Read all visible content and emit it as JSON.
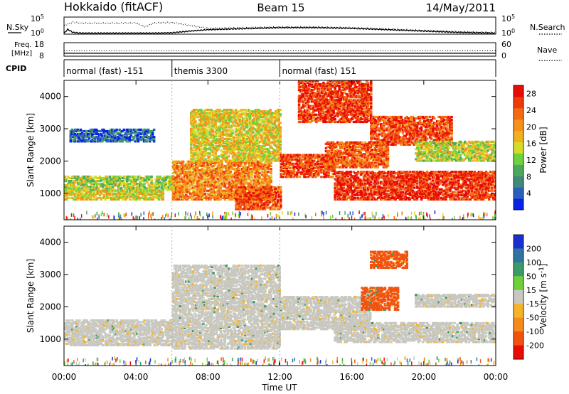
{
  "header": {
    "radar": "Hokkaido (fitACF)",
    "beam": "Beam 15",
    "date": "14/May/2011"
  },
  "side_labels": {
    "nsky": "N.Sky",
    "freq_line1": "Freq.",
    "freq_line2": "[MHz]",
    "cpid": "CPID",
    "nsearch": "N.Search",
    "nave": "Nave"
  },
  "chart_data": [
    {
      "type": "line",
      "panel": "noise",
      "series": [
        {
          "name": "N.Sky",
          "style": "solid",
          "x": [
            0,
            0.2,
            0.5,
            1,
            2,
            3,
            4,
            5,
            6,
            7,
            8,
            10,
            12,
            14,
            16,
            18,
            20,
            22,
            24
          ],
          "y_log10": [
            0.2,
            1.4,
            0.5,
            0.3,
            0.3,
            0.3,
            0.3,
            0.3,
            0.4,
            0.9,
            1.3,
            1.6,
            1.9,
            1.9,
            1.7,
            1.3,
            0.9,
            0.5,
            0.3
          ]
        },
        {
          "name": "N.Search",
          "style": "dotted",
          "x": [
            0,
            0.5,
            1,
            2,
            3,
            4,
            4.5,
            5,
            6,
            8,
            10,
            12,
            14,
            16,
            18,
            20,
            22,
            24
          ],
          "y_log10": [
            2.5,
            3.5,
            3.2,
            3.2,
            3.2,
            3.3,
            2.1,
            3.3,
            3.4,
            1.7,
            1.9,
            2.1,
            2.1,
            1.9,
            1.5,
            1.1,
            0.7,
            0.5
          ]
        }
      ],
      "left_ticks": [
        "10^5",
        "10^0"
      ],
      "right_ticks": [
        "10^5",
        "10^0"
      ],
      "ylim_log10": [
        0,
        5
      ]
    },
    {
      "type": "line",
      "panel": "frequency",
      "series": [
        {
          "name": "Freq.",
          "style": "solid",
          "x": [
            0,
            24
          ],
          "y": [
            10.2,
            10.2
          ]
        },
        {
          "name": "Nave",
          "style": "dotted",
          "x": [
            0,
            24
          ],
          "y": [
            12,
            12
          ]
        }
      ],
      "left_ticks": [
        "18",
        "8"
      ],
      "right_ticks": [
        "60",
        "0"
      ],
      "ylim": [
        8,
        18
      ]
    },
    {
      "type": "timeline",
      "panel": "cpid",
      "segments": [
        {
          "label": "normal (fast) -151",
          "start": 0,
          "end": 6
        },
        {
          "label": "themis 3300",
          "start": 6,
          "end": 12
        },
        {
          "label": "normal (fast) 151",
          "start": 12,
          "end": 24
        }
      ]
    },
    {
      "type": "heatmap",
      "panel": "power",
      "ylabel": "Slant Range [km]",
      "ylim": [
        180,
        4500
      ],
      "yticks": [
        1000,
        2000,
        3000,
        4000
      ],
      "colorbar": {
        "label": "Power [dB]",
        "ticks": [
          4,
          8,
          12,
          16,
          20,
          24,
          28
        ],
        "range": [
          0,
          30
        ],
        "colors": [
          "#0a22e8",
          "#2a5fbe",
          "#3f8a7a",
          "#4da85e",
          "#6fd040",
          "#d4dc28",
          "#f0b020",
          "#f59018",
          "#f46a12",
          "#ef3a0a",
          "#e80a04"
        ]
      },
      "bands": [
        {
          "start": 0.0,
          "end": 6.0,
          "lo": 1100,
          "hi": 1550,
          "level": 0.45
        },
        {
          "start": 0.0,
          "end": 5.5,
          "lo": 800,
          "hi": 1100,
          "level": 0.55
        },
        {
          "start": 0.3,
          "end": 5.0,
          "lo": 2600,
          "hi": 3000,
          "level": 0.15
        },
        {
          "start": 6.0,
          "end": 11.5,
          "lo": 800,
          "hi": 2000,
          "level": 0.7
        },
        {
          "start": 7.0,
          "end": 12.0,
          "lo": 2000,
          "hi": 3600,
          "level": 0.55
        },
        {
          "start": 9.5,
          "end": 12.0,
          "lo": 500,
          "hi": 1200,
          "level": 0.82
        },
        {
          "start": 12.0,
          "end": 15.0,
          "lo": 1500,
          "hi": 2200,
          "level": 0.85
        },
        {
          "start": 13.0,
          "end": 17.0,
          "lo": 3200,
          "hi": 4500,
          "level": 0.88
        },
        {
          "start": 15.0,
          "end": 24.0,
          "lo": 800,
          "hi": 1700,
          "level": 0.9
        },
        {
          "start": 17.0,
          "end": 21.5,
          "lo": 2500,
          "hi": 3400,
          "level": 0.85
        },
        {
          "start": 19.5,
          "end": 24.0,
          "lo": 2000,
          "hi": 2600,
          "level": 0.5
        },
        {
          "start": 14.5,
          "end": 18.0,
          "lo": 1800,
          "hi": 2600,
          "level": 0.8
        }
      ]
    },
    {
      "type": "heatmap",
      "panel": "velocity",
      "ylabel": "Slant Range [km]",
      "ylim": [
        180,
        4500
      ],
      "yticks": [
        1000,
        2000,
        3000,
        4000
      ],
      "xlabel": "Time UT",
      "xticks": [
        "00:00",
        "04:00",
        "08:00",
        "12:00",
        "16:00",
        "20:00",
        "00:00"
      ],
      "xlim": [
        0,
        24
      ],
      "colorbar": {
        "label": "Velocity [m s^-1]",
        "ticks": [
          200,
          100,
          50,
          15,
          -15,
          -50,
          -100,
          -200
        ],
        "colors": [
          "#1a2fd0",
          "#2f74a0",
          "#3c9a6a",
          "#6fcf3a",
          "#c8c8c0",
          "#f4b42a",
          "#f68a1a",
          "#f2520f",
          "#e80c04"
        ]
      },
      "bands": [
        {
          "start": 0.0,
          "end": 6.0,
          "lo": 800,
          "hi": 1600,
          "level": 0.5
        },
        {
          "start": 6.0,
          "end": 12.0,
          "lo": 700,
          "hi": 3300,
          "level": 0.5
        },
        {
          "start": 12.0,
          "end": 17.0,
          "lo": 1300,
          "hi": 2300,
          "level": 0.5
        },
        {
          "start": 15.0,
          "end": 24.0,
          "lo": 900,
          "hi": 1500,
          "level": 0.5
        },
        {
          "start": 16.5,
          "end": 18.5,
          "lo": 1900,
          "hi": 2600,
          "level": 0.78
        },
        {
          "start": 17.0,
          "end": 19.0,
          "lo": 3200,
          "hi": 3700,
          "level": 0.8
        },
        {
          "start": 19.5,
          "end": 24.0,
          "lo": 2000,
          "hi": 2400,
          "level": 0.5
        }
      ]
    }
  ]
}
